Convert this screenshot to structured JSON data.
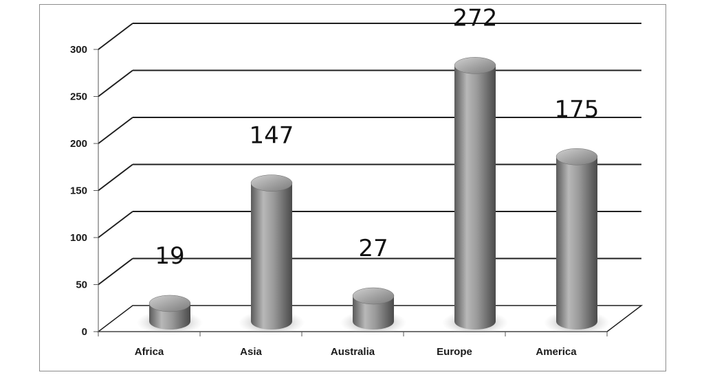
{
  "chart_data": {
    "type": "bar",
    "categories": [
      "Africa",
      "Asia",
      "Australia",
      "Europe",
      "America"
    ],
    "values": [
      19,
      147,
      27,
      272,
      175
    ],
    "data_labels": [
      "19",
      "147",
      "27",
      "272",
      "175"
    ],
    "yticks": [
      "0",
      "50",
      "100",
      "150",
      "200",
      "250",
      "300"
    ],
    "ylim": [
      0,
      300
    ],
    "title": "",
    "xlabel": "",
    "ylabel": "",
    "grid": true,
    "style": "3d-cylinder",
    "colors": {
      "bar": "#8a8a8a",
      "grid": "#1f1f1f",
      "axis": "#555555"
    }
  }
}
